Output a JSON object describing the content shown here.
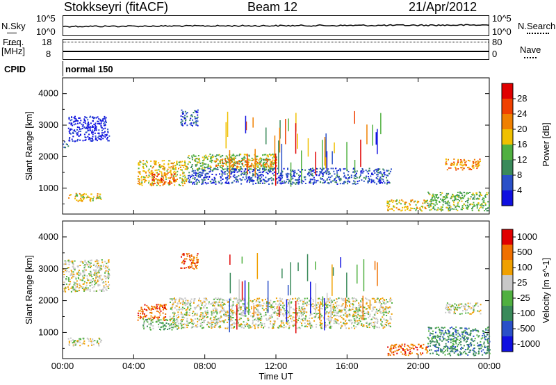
{
  "header": {
    "station": "Stokkseyri (fitACF)",
    "beam": "Beam 12",
    "date": "21/Apr/2012"
  },
  "aux": {
    "nsky_label": "N.Sky",
    "nsky_top": "10^5",
    "nsky_bottom": "10^0",
    "nsearch_label": "N.Search",
    "nsearch_top": "10^5",
    "nsearch_bottom": "10^0",
    "freq_label": "Freq.",
    "freq_unit": "[MHz]",
    "freq_ticks": [
      "18",
      "8"
    ],
    "nave_label": "Nave",
    "nave_ticks": [
      "80",
      "0"
    ],
    "cpid_label": "CPID",
    "cpid_value": "normal 150"
  },
  "colors": {
    "power": [
      "#1010e0",
      "#2a50c8",
      "#3a8a5a",
      "#50b040",
      "#f0c000",
      "#f08000",
      "#f04000",
      "#e00000"
    ],
    "velocity": [
      "#1010e0",
      "#2a50c8",
      "#3a8a5a",
      "#50b040",
      "#c8c8c8",
      "#f0a000",
      "#f07000",
      "#e00000"
    ]
  },
  "chart_data": [
    {
      "type": "heatmap",
      "name": "power",
      "xlabel": "Time UT",
      "ylabel": "Slant Range [km]",
      "colorbar_label": "Power [dB]",
      "x_ticks": [
        "00:00",
        "04:00",
        "08:00",
        "12:00",
        "16:00",
        "20:00",
        "00:00"
      ],
      "y_ticks": [
        1000,
        2000,
        3000,
        4000
      ],
      "ylim": [
        180,
        4500
      ],
      "colorbar_ticks": [
        "28",
        "24",
        "20",
        "16",
        "12",
        "8",
        "4"
      ],
      "features": [
        {
          "t0": 0.0,
          "t1": 0.3,
          "r0": 2300,
          "r1": 2500,
          "level": 1
        },
        {
          "t0": 0.3,
          "t1": 2.6,
          "r0": 2500,
          "r1": 3300,
          "level": 0
        },
        {
          "t0": 0.3,
          "t1": 2.2,
          "r0": 600,
          "r1": 850,
          "level": 4
        },
        {
          "t0": 4.2,
          "t1": 7.0,
          "r0": 1100,
          "r1": 1900,
          "level": 4
        },
        {
          "t0": 5.0,
          "t1": 6.3,
          "r0": 1150,
          "r1": 1500,
          "level": 6
        },
        {
          "t0": 6.6,
          "t1": 7.6,
          "r0": 3000,
          "r1": 3500,
          "level": 1
        },
        {
          "t0": 7.0,
          "t1": 12.0,
          "r0": 1600,
          "r1": 2100,
          "level": 3
        },
        {
          "t0": 8.5,
          "t1": 12.0,
          "r0": 1700,
          "r1": 1950,
          "level": 5
        },
        {
          "t0": 7.0,
          "t1": 18.5,
          "r0": 1150,
          "r1": 1650,
          "level": 1
        },
        {
          "t0": 18.2,
          "t1": 20.5,
          "r0": 300,
          "r1": 650,
          "level": 4
        },
        {
          "t0": 20.5,
          "t1": 24.0,
          "r0": 300,
          "r1": 900,
          "level": 3
        },
        {
          "t0": 21.5,
          "t1": 23.5,
          "r0": 1600,
          "r1": 1950,
          "level": 5
        }
      ]
    },
    {
      "type": "heatmap",
      "name": "velocity",
      "xlabel": "Time UT",
      "ylabel": "Slant Range [km]",
      "colorbar_label": "Velocity [m s^-1]",
      "x_ticks": [
        "00:00",
        "04:00",
        "08:00",
        "12:00",
        "16:00",
        "20:00",
        "00:00"
      ],
      "y_ticks": [
        1000,
        2000,
        3000,
        4000
      ],
      "ylim": [
        180,
        4500
      ],
      "colorbar_ticks": [
        "1000",
        "500",
        "100",
        "25",
        "-25",
        "-100",
        "-500",
        "-1000"
      ],
      "features": [
        {
          "t0": 0.0,
          "t1": 2.6,
          "r0": 2300,
          "r1": 3300,
          "level": 4
        },
        {
          "t0": 0.3,
          "t1": 2.2,
          "r0": 600,
          "r1": 850,
          "level": 4
        },
        {
          "t0": 4.2,
          "t1": 5.8,
          "r0": 1400,
          "r1": 1900,
          "level": 6
        },
        {
          "t0": 4.5,
          "t1": 6.5,
          "r0": 1100,
          "r1": 1450,
          "level": 3
        },
        {
          "t0": 6.6,
          "t1": 7.6,
          "r0": 3000,
          "r1": 3500,
          "level": 6
        },
        {
          "t0": 6.0,
          "t1": 18.5,
          "r0": 1150,
          "r1": 2100,
          "level": 4
        },
        {
          "t0": 18.2,
          "t1": 20.5,
          "r0": 300,
          "r1": 650,
          "level": 6
        },
        {
          "t0": 20.5,
          "t1": 24.0,
          "r0": 300,
          "r1": 1200,
          "level": 2
        },
        {
          "t0": 21.5,
          "t1": 23.5,
          "r0": 1600,
          "r1": 1950,
          "level": 4
        }
      ]
    }
  ]
}
